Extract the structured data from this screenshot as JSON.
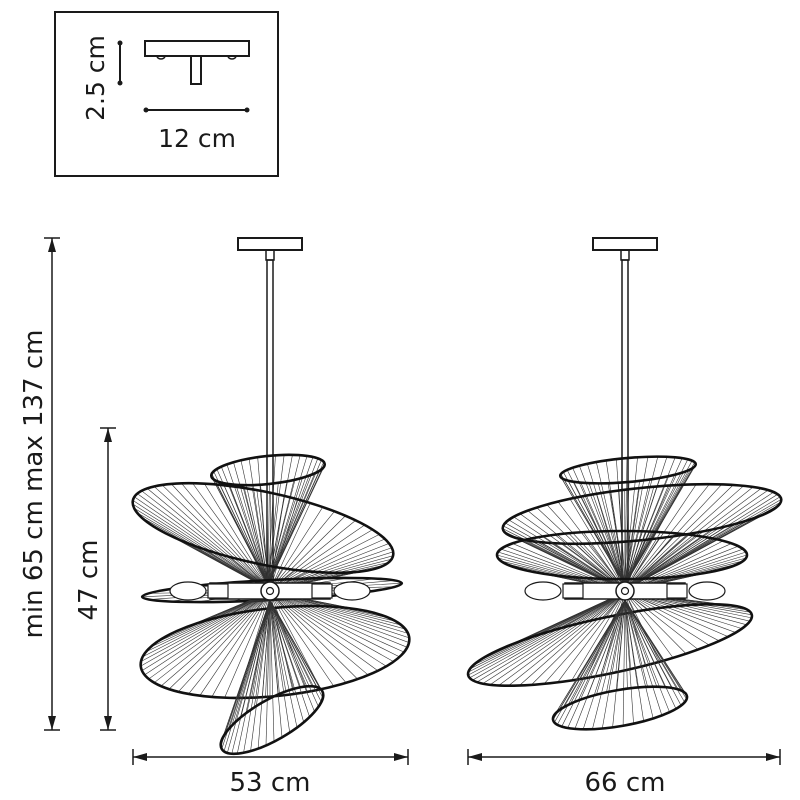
{
  "inset": {
    "height_label": "2.5 cm",
    "width_label": "12 cm"
  },
  "dimensions": {
    "total_height_label": "min 65 cm max 137 cm",
    "shade_height_label": "47 cm",
    "front_width_label": "53 cm",
    "side_width_label": "66 cm"
  }
}
